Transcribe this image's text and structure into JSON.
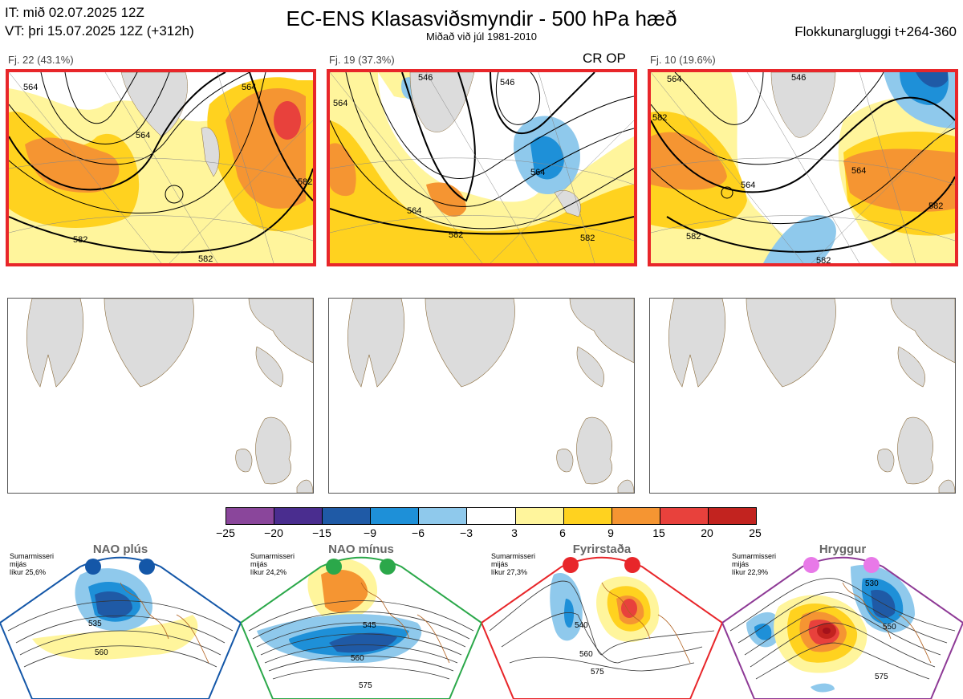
{
  "header": {
    "it_line": "IT: mið 02.07.2025 12Z",
    "vt_line": "VT: þri 15.07.2025 12Z  (+312h)",
    "title": "EC-ENS Klasasviðsmyndir - 500 hPa hæð",
    "subtitle": "Miðað við júl 1981-2010",
    "window": "Flokkunargluggi t+264-360"
  },
  "clusters": [
    {
      "label": "Fj. 22 (43.1%)",
      "contours": [
        "564",
        "564",
        "564",
        "582",
        "582",
        "582"
      ]
    },
    {
      "label": "Fj. 19 (37.3%)",
      "contours": [
        "546",
        "546",
        "564",
        "564",
        "564",
        "582",
        "582"
      ],
      "flags": "CR OP"
    },
    {
      "label": "Fj. 10 (19.6%)",
      "contours": [
        "564",
        "546",
        "582",
        "564",
        "564",
        "582",
        "582",
        "582"
      ]
    }
  ],
  "colorbar": {
    "colors": [
      "#8a469b",
      "#4a2d8f",
      "#1f5aa6",
      "#1e90d8",
      "#8fc9ec",
      "#ffffff",
      "#fff59c",
      "#ffd21f",
      "#f59532",
      "#e8413c",
      "#c2231f",
      "#a5121b"
    ],
    "ticks": [
      "−25",
      "−20",
      "−15",
      "−9",
      "−6",
      "−3",
      "3",
      "6",
      "9",
      "15",
      "20",
      "25"
    ]
  },
  "regimes": [
    {
      "name": "NAO plús",
      "note": [
        "Sumarmisseri",
        "mijás",
        "líkur 25,6%"
      ],
      "color": "#1457a8",
      "contours": [
        "535",
        "560"
      ]
    },
    {
      "name": "NAO mínus",
      "note": [
        "Sumarmisseri",
        "mijás",
        "líkur 24,2%"
      ],
      "color": "#2ba84a",
      "contours": [
        "545",
        "560",
        "575"
      ]
    },
    {
      "name": "Fyrirstaða",
      "note": [
        "Sumarmisseri",
        "mijás",
        "líkur 27,3%"
      ],
      "color": "#e8262a",
      "contours": [
        "540",
        "560",
        "575"
      ]
    },
    {
      "name": "Hryggur",
      "note": [
        "Sumarmisseri",
        "mijás",
        "líkur 22,9%"
      ],
      "color": "#8e3a96",
      "contours": [
        "530",
        "550",
        "575"
      ]
    }
  ]
}
